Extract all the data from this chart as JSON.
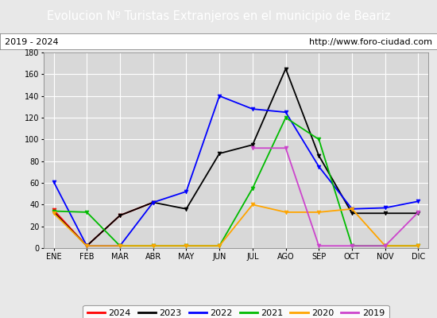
{
  "title": "Evolucion Nº Turistas Extranjeros en el municipio de Beariz",
  "subtitle_left": "2019 - 2024",
  "subtitle_right": "http://www.foro-ciudad.com",
  "title_bg_color": "#4a86c8",
  "title_text_color": "#ffffff",
  "months": [
    "ENE",
    "FEB",
    "MAR",
    "ABR",
    "MAY",
    "JUN",
    "JUL",
    "AGO",
    "SEP",
    "OCT",
    "NOV",
    "DIC"
  ],
  "ylim": [
    0,
    180
  ],
  "yticks": [
    0,
    20,
    40,
    60,
    80,
    100,
    120,
    140,
    160,
    180
  ],
  "series": {
    "2024": {
      "color": "#ff0000",
      "data": [
        35,
        2,
        30,
        42,
        null,
        null,
        null,
        null,
        null,
        null,
        null,
        null
      ]
    },
    "2023": {
      "color": "#000000",
      "data": [
        33,
        2,
        30,
        42,
        36,
        87,
        95,
        165,
        85,
        32,
        32,
        32
      ]
    },
    "2022": {
      "color": "#0000ff",
      "data": [
        61,
        2,
        2,
        42,
        52,
        140,
        128,
        125,
        75,
        36,
        37,
        43
      ]
    },
    "2021": {
      "color": "#00bb00",
      "data": [
        34,
        33,
        2,
        2,
        2,
        2,
        55,
        120,
        100,
        2,
        2,
        2
      ]
    },
    "2020": {
      "color": "#ffa500",
      "data": [
        32,
        2,
        2,
        2,
        2,
        2,
        40,
        33,
        33,
        36,
        2,
        2
      ]
    },
    "2019": {
      "color": "#cc44cc",
      "data": [
        null,
        null,
        null,
        null,
        null,
        null,
        92,
        92,
        2,
        2,
        2,
        33
      ]
    }
  },
  "legend_order": [
    "2024",
    "2023",
    "2022",
    "2021",
    "2020",
    "2019"
  ],
  "bg_color": "#e8e8e8",
  "plot_bg_color": "#d8d8d8",
  "grid_color": "#ffffff",
  "subtitle_bg": "#ffffff",
  "title_fontsize": 10.5,
  "subtitle_fontsize": 8,
  "tick_fontsize": 7,
  "legend_fontsize": 8
}
